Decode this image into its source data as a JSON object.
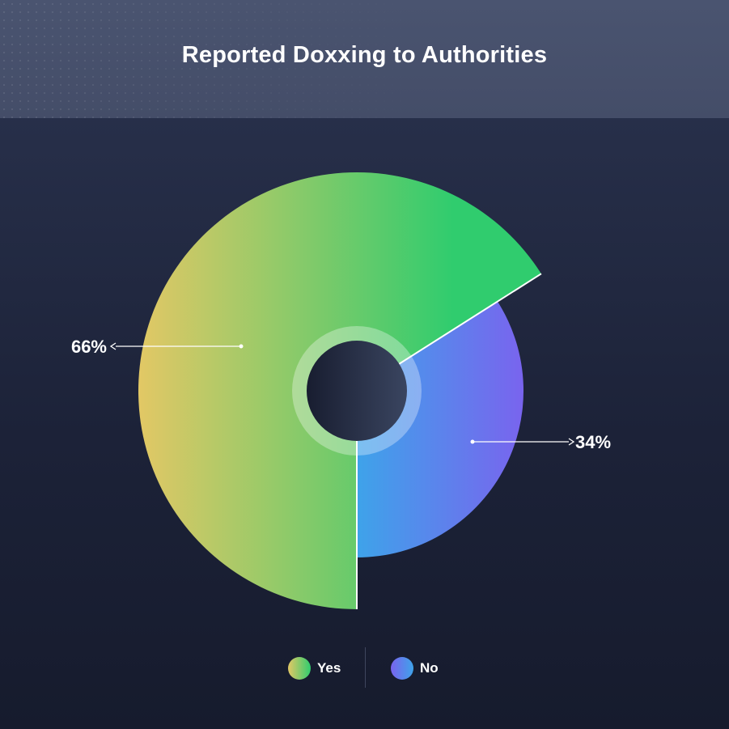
{
  "chart_data": {
    "type": "pie",
    "title": "Reported Doxxing to Authorities",
    "categories": [
      "Yes",
      "No"
    ],
    "values": [
      66,
      34
    ],
    "data_labels": [
      "66%",
      "34%"
    ],
    "legend": {
      "placement": "bottom",
      "entries": [
        "Yes",
        "No"
      ]
    },
    "colors": {
      "yes_gradient": [
        "#e2c865",
        "#30cc6e"
      ],
      "no_gradient": [
        "#3ea3ea",
        "#7a63ee"
      ]
    }
  }
}
